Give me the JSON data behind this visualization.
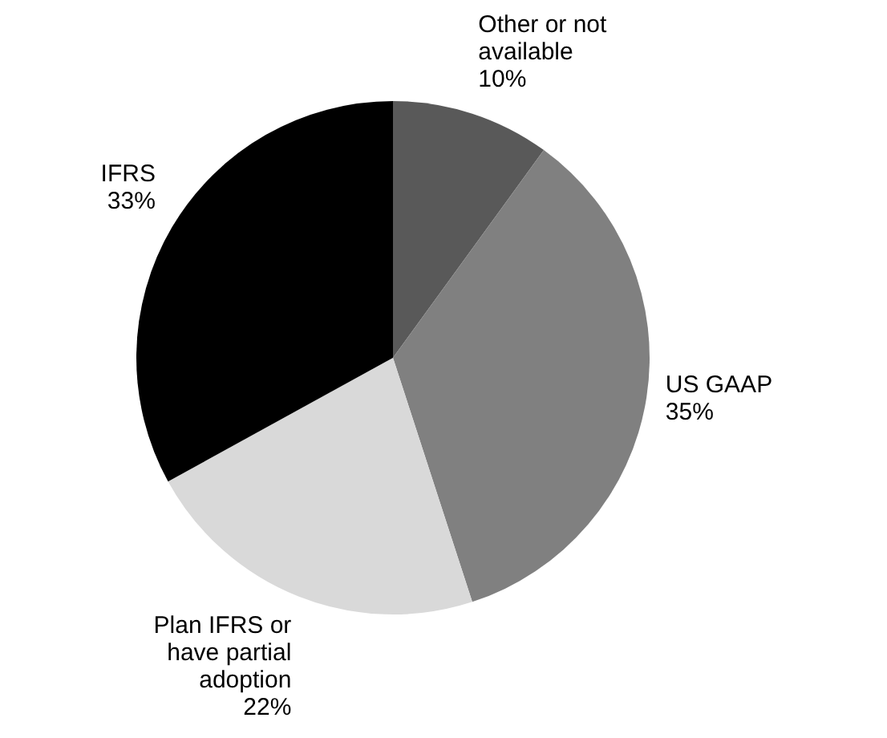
{
  "chart_data": {
    "type": "pie",
    "categories": [
      "Other or not available",
      "US GAAP",
      "Plan IFRS or have partial adoption",
      "IFRS"
    ],
    "values": [
      10,
      35,
      22,
      33
    ],
    "value_labels": [
      "10%",
      "35%",
      "22%",
      "33%"
    ],
    "colors": [
      "#595959",
      "#808080",
      "#d9d9d9",
      "#000000"
    ],
    "legend": false
  }
}
